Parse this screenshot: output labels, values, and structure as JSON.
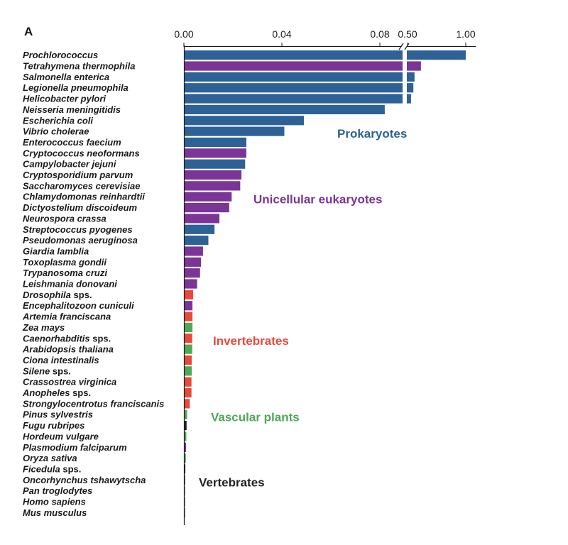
{
  "chart_data": {
    "type": "bar",
    "orientation": "horizontal",
    "panel_label": "A",
    "title": "",
    "xlabel": "",
    "ylabel": "",
    "axis_break": true,
    "xlim_main": [
      0,
      0.12
    ],
    "xlim_break": [
      0.5,
      1.0
    ],
    "x_ticks_main": [
      "0.00",
      "0.04",
      "0.08"
    ],
    "x_ticks_break": [
      "0.50",
      "1.00"
    ],
    "colors": {
      "Prokaryotes": "#2e6196",
      "Unicellular eukaryotes": "#7b3597",
      "Invertebrates": "#e84a3a",
      "Vascular plants": "#4fa857",
      "Vertebrates": "#222222"
    },
    "groups": [
      {
        "name": "Prokaryotes"
      },
      {
        "name": "Unicellular eukaryotes"
      },
      {
        "name": "Invertebrates"
      },
      {
        "name": "Vascular plants"
      },
      {
        "name": "Vertebrates"
      }
    ],
    "categories": [
      {
        "name": "Prochlorococcus",
        "suffix": "",
        "group": "Prokaryotes",
        "value": 1.0
      },
      {
        "name": "Tetrahymena thermophila",
        "suffix": "",
        "group": "Unicellular eukaryotes",
        "value": 0.615
      },
      {
        "name": "Salmonella enterica",
        "suffix": "",
        "group": "Prokaryotes",
        "value": 0.56
      },
      {
        "name": "Legionella pneumophila",
        "suffix": "",
        "group": "Prokaryotes",
        "value": 0.55
      },
      {
        "name": "Helicobacter pylori",
        "suffix": "",
        "group": "Prokaryotes",
        "value": 0.53
      },
      {
        "name": "Neisseria meningitidis",
        "suffix": "",
        "group": "Prokaryotes",
        "value": 0.082
      },
      {
        "name": "Escherichia coli",
        "suffix": "",
        "group": "Prokaryotes",
        "value": 0.049
      },
      {
        "name": "Vibrio cholerae",
        "suffix": "",
        "group": "Prokaryotes",
        "value": 0.041
      },
      {
        "name": "Enterococcus faecium",
        "suffix": "",
        "group": "Prokaryotes",
        "value": 0.0255
      },
      {
        "name": "Cryptococcus neoformans",
        "suffix": "",
        "group": "Unicellular eukaryotes",
        "value": 0.0255
      },
      {
        "name": "Campylobacter jejuni",
        "suffix": "",
        "group": "Prokaryotes",
        "value": 0.025
      },
      {
        "name": "Cryptosporidium parvum",
        "suffix": "",
        "group": "Unicellular eukaryotes",
        "value": 0.0235
      },
      {
        "name": "Saccharomyces cerevisiae",
        "suffix": "",
        "group": "Unicellular eukaryotes",
        "value": 0.023
      },
      {
        "name": "Chlamydomonas reinhardtii",
        "suffix": "",
        "group": "Unicellular eukaryotes",
        "value": 0.0195
      },
      {
        "name": "Dictyostelium discoideum",
        "suffix": "",
        "group": "Unicellular eukaryotes",
        "value": 0.0185
      },
      {
        "name": "Neurospora crassa",
        "suffix": "",
        "group": "Unicellular eukaryotes",
        "value": 0.0145
      },
      {
        "name": "Streptococcus pyogenes",
        "suffix": "",
        "group": "Prokaryotes",
        "value": 0.0125
      },
      {
        "name": "Pseudomonas aeruginosa",
        "suffix": "",
        "group": "Prokaryotes",
        "value": 0.01
      },
      {
        "name": "Giardia lamblia",
        "suffix": "",
        "group": "Unicellular eukaryotes",
        "value": 0.0078
      },
      {
        "name": "Toxoplasma gondii",
        "suffix": "",
        "group": "Unicellular eukaryotes",
        "value": 0.007
      },
      {
        "name": "Trypanosoma cruzi",
        "suffix": "",
        "group": "Unicellular eukaryotes",
        "value": 0.0066
      },
      {
        "name": "Leishmania donovani",
        "suffix": "",
        "group": "Unicellular eukaryotes",
        "value": 0.0054
      },
      {
        "name": "Drosophila",
        "suffix": " sps.",
        "group": "Invertebrates",
        "value": 0.0038
      },
      {
        "name": "Encephalitozoon cuniculi",
        "suffix": "",
        "group": "Unicellular eukaryotes",
        "value": 0.0035
      },
      {
        "name": "Artemia franciscana",
        "suffix": "",
        "group": "Invertebrates",
        "value": 0.0035
      },
      {
        "name": "Zea mays",
        "suffix": "",
        "group": "Vascular plants",
        "value": 0.0035
      },
      {
        "name": "Caenorhabditis",
        "suffix": " sps.",
        "group": "Invertebrates",
        "value": 0.0034
      },
      {
        "name": "Arabidopsis thaliana",
        "suffix": "",
        "group": "Vascular plants",
        "value": 0.0034
      },
      {
        "name": "Ciona intestinalis",
        "suffix": "",
        "group": "Invertebrates",
        "value": 0.0032
      },
      {
        "name": "Silene",
        "suffix": " sps.",
        "group": "Vascular plants",
        "value": 0.0032
      },
      {
        "name": "Crassostrea virginica",
        "suffix": "",
        "group": "Invertebrates",
        "value": 0.0031
      },
      {
        "name": "Anopheles",
        "suffix": " sps.",
        "group": "Invertebrates",
        "value": 0.0031
      },
      {
        "name": "Strongylocentrotus franciscanis",
        "suffix": "",
        "group": "Invertebrates",
        "value": 0.0024
      },
      {
        "name": "Pinus sylvestris",
        "suffix": "",
        "group": "Vascular plants",
        "value": 0.0013
      },
      {
        "name": "Fugu rubripes",
        "suffix": "",
        "group": "Vertebrates",
        "value": 0.0011
      },
      {
        "name": "Hordeum vulgare",
        "suffix": "",
        "group": "Vascular plants",
        "value": 0.001
      },
      {
        "name": "Plasmodium falciparum",
        "suffix": "",
        "group": "Unicellular eukaryotes",
        "value": 0.0009
      },
      {
        "name": "Oryza sativa",
        "suffix": "",
        "group": "Vascular plants",
        "value": 0.0008
      },
      {
        "name": "Ficedula",
        "suffix": " sps.",
        "group": "Vertebrates",
        "value": 0.0006
      },
      {
        "name": "Oncorhynchus tshawytscha",
        "suffix": "",
        "group": "Vertebrates",
        "value": 0.0005
      },
      {
        "name": "Pan troglodytes",
        "suffix": "",
        "group": "Vertebrates",
        "value": 0.0004
      },
      {
        "name": "Homo sapiens",
        "suffix": "",
        "group": "Vertebrates",
        "value": 0.0003
      },
      {
        "name": "Mus musculus",
        "suffix": "",
        "group": "Vertebrates",
        "value": 0.0002
      }
    ]
  }
}
